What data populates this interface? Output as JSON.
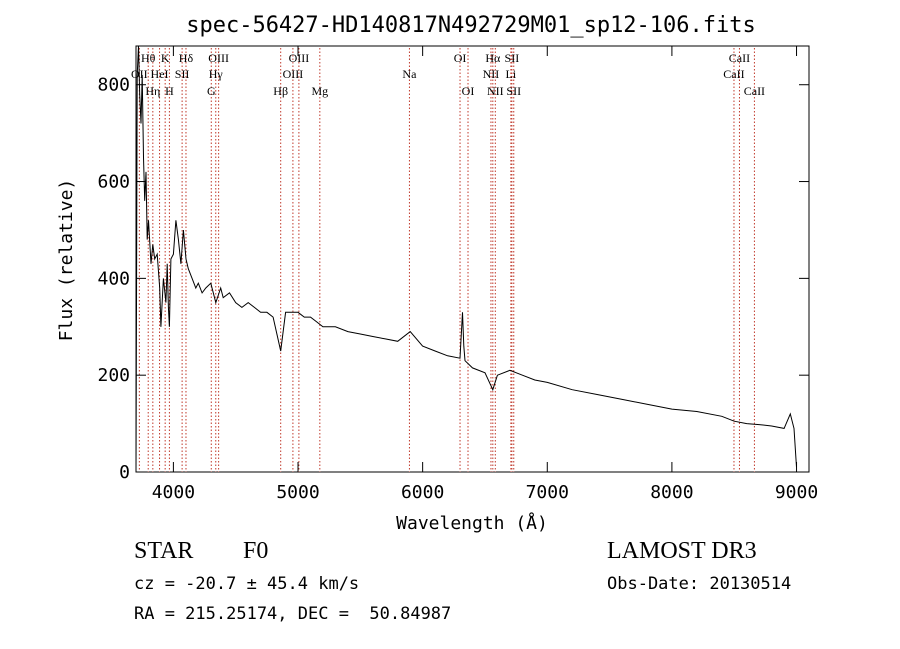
{
  "chart_data": {
    "type": "line",
    "title": "spec-56427-HD140817N492729M01_sp12-106.fits",
    "xlabel": "Wavelength (Å)",
    "ylabel": "Flux (relative)",
    "xlim": [
      3700,
      9100
    ],
    "ylim": [
      0,
      880
    ],
    "xticks": [
      4000,
      5000,
      6000,
      7000,
      8000,
      9000
    ],
    "yticks": [
      0,
      200,
      400,
      600,
      800
    ],
    "series": [
      {
        "name": "spectrum",
        "x": [
          3700,
          3710,
          3720,
          3730,
          3740,
          3750,
          3760,
          3770,
          3780,
          3790,
          3800,
          3820,
          3835,
          3850,
          3870,
          3890,
          3900,
          3920,
          3940,
          3950,
          3960,
          3968,
          3980,
          4000,
          4020,
          4040,
          4060,
          4080,
          4101,
          4120,
          4150,
          4180,
          4200,
          4230,
          4260,
          4300,
          4340,
          4380,
          4400,
          4450,
          4500,
          4550,
          4600,
          4650,
          4700,
          4750,
          4800,
          4861,
          4900,
          4950,
          5000,
          5050,
          5100,
          5150,
          5200,
          5250,
          5300,
          5400,
          5500,
          5600,
          5700,
          5800,
          5900,
          6000,
          6100,
          6200,
          6300,
          6320,
          6330,
          6340,
          6400,
          6500,
          6563,
          6600,
          6700,
          6800,
          6900,
          7000,
          7200,
          7400,
          7600,
          7800,
          8000,
          8200,
          8400,
          8500,
          8600,
          8700,
          8800,
          8900,
          8950,
          8980,
          9000
        ],
        "y": [
          0,
          820,
          880,
          780,
          720,
          820,
          650,
          560,
          620,
          480,
          520,
          430,
          470,
          440,
          450,
          380,
          300,
          400,
          350,
          430,
          340,
          300,
          440,
          450,
          520,
          480,
          430,
          500,
          440,
          420,
          400,
          380,
          390,
          370,
          380,
          390,
          350,
          380,
          360,
          370,
          350,
          340,
          350,
          340,
          330,
          330,
          320,
          250,
          330,
          330,
          330,
          320,
          320,
          310,
          300,
          300,
          300,
          290,
          285,
          280,
          275,
          270,
          290,
          260,
          250,
          240,
          235,
          330,
          260,
          230,
          215,
          205,
          170,
          200,
          210,
          200,
          190,
          185,
          170,
          160,
          150,
          140,
          130,
          125,
          115,
          105,
          100,
          98,
          95,
          90,
          120,
          90,
          10
        ]
      }
    ],
    "lines": [
      {
        "name": "OII",
        "wl": 3727,
        "row": 1
      },
      {
        "name": "Hθ",
        "wl": 3798,
        "row": 0
      },
      {
        "name": "Hη",
        "wl": 3835,
        "row": 2
      },
      {
        "name": "HeI",
        "wl": 3889,
        "row": 1
      },
      {
        "name": "K",
        "wl": 3934,
        "row": 0
      },
      {
        "name": "H",
        "wl": 3968,
        "row": 2
      },
      {
        "name": "SII",
        "wl": 4070,
        "row": 1
      },
      {
        "name": "Hδ",
        "wl": 4101,
        "row": 0
      },
      {
        "name": "G",
        "wl": 4304,
        "row": 2
      },
      {
        "name": "Hγ",
        "wl": 4340,
        "row": 1
      },
      {
        "name": "OIII",
        "wl": 4363,
        "row": 0
      },
      {
        "name": "Hβ",
        "wl": 4861,
        "row": 2
      },
      {
        "name": "OIII",
        "wl": 4959,
        "row": 1
      },
      {
        "name": "OIII",
        "wl": 5007,
        "row": 0
      },
      {
        "name": "Mg",
        "wl": 5175,
        "row": 2
      },
      {
        "name": "Na",
        "wl": 5894,
        "row": 1
      },
      {
        "name": "OI",
        "wl": 6300,
        "row": 0
      },
      {
        "name": "OI",
        "wl": 6364,
        "row": 2
      },
      {
        "name": "NII",
        "wl": 6548,
        "row": 1
      },
      {
        "name": "Hα",
        "wl": 6563,
        "row": 0
      },
      {
        "name": "NII",
        "wl": 6583,
        "row": 2
      },
      {
        "name": "Li",
        "wl": 6708,
        "row": 1
      },
      {
        "name": "SII",
        "wl": 6716,
        "row": 0
      },
      {
        "name": "SII",
        "wl": 6731,
        "row": 2
      },
      {
        "name": "CaII",
        "wl": 8498,
        "row": 1
      },
      {
        "name": "CaII",
        "wl": 8542,
        "row": 0
      },
      {
        "name": "CaII",
        "wl": 8662,
        "row": 2
      }
    ],
    "line_color": "#c0392b"
  },
  "info": {
    "object_class": "STAR",
    "subclass": "F0",
    "survey": "LAMOST DR3",
    "cz": "cz = -20.7 ± 45.4 km/s",
    "obs_date": "Obs-Date: 20130514",
    "coords": "RA = 215.25174, DEC =  50.84987"
  }
}
